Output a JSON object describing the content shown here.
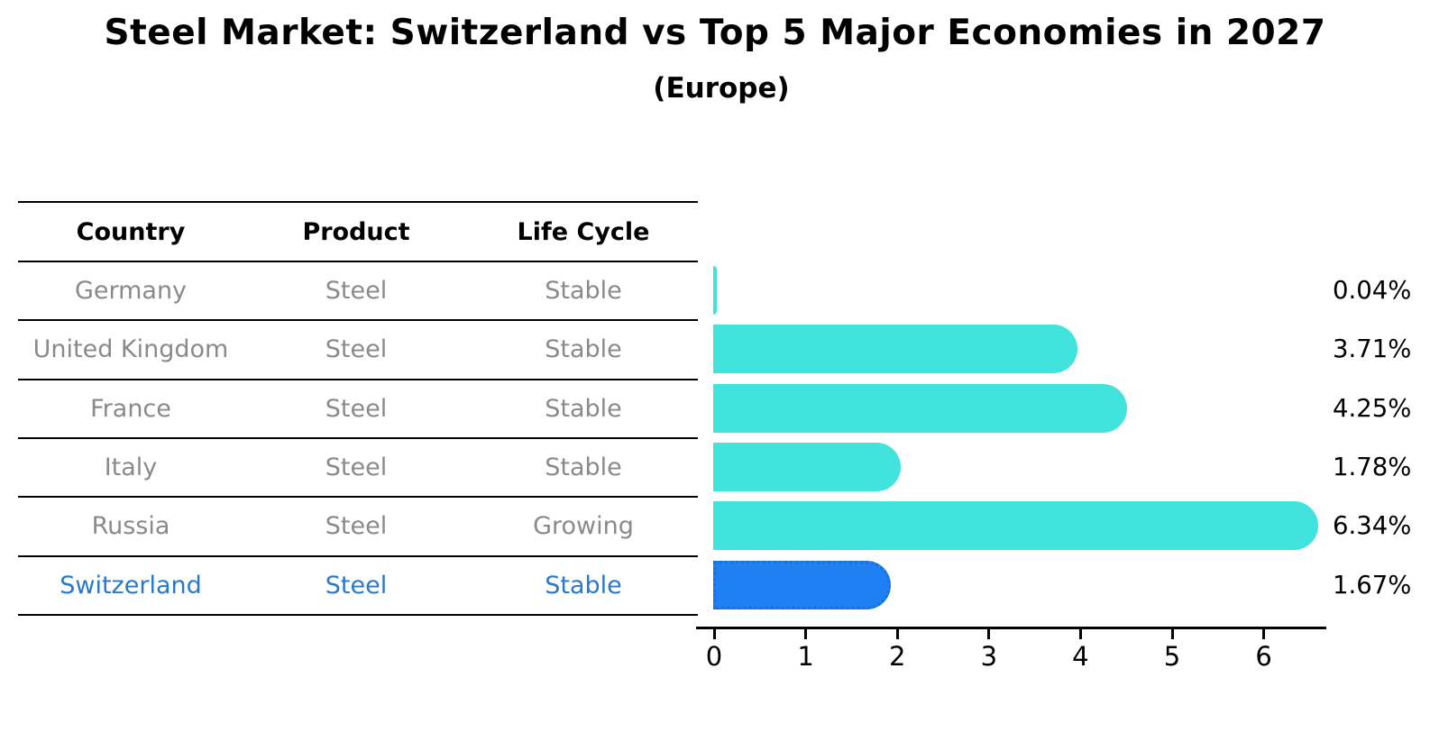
{
  "title": "Steel Market: Switzerland vs Top 5 Major Economies in 2027",
  "subtitle": "(Europe)",
  "table": {
    "headers": [
      "Country",
      "Product",
      "Life Cycle"
    ],
    "rows": [
      {
        "country": "Germany",
        "product": "Steel",
        "life_cycle": "Stable",
        "highlight": false
      },
      {
        "country": "United Kingdom",
        "product": "Steel",
        "life_cycle": "Stable",
        "highlight": false
      },
      {
        "country": "France",
        "product": "Steel",
        "life_cycle": "Stable",
        "highlight": false
      },
      {
        "country": "Italy",
        "product": "Steel",
        "life_cycle": "Stable",
        "highlight": false
      },
      {
        "country": "Russia",
        "product": "Steel",
        "life_cycle": "Growing",
        "highlight": false
      },
      {
        "country": "Switzerland",
        "product": "Steel",
        "life_cycle": "Stable",
        "highlight": true
      }
    ]
  },
  "chart_data": {
    "type": "bar",
    "orientation": "horizontal",
    "title": "Steel Market: Switzerland vs Top 5 Major Economies in 2027",
    "subtitle": "(Europe)",
    "categories": [
      "Germany",
      "United Kingdom",
      "France",
      "Italy",
      "Russia",
      "Switzerland"
    ],
    "values": [
      0.04,
      3.71,
      4.25,
      1.78,
      6.34,
      1.67
    ],
    "value_labels": [
      "0.04%",
      "3.71%",
      "4.25%",
      "1.78%",
      "6.34%",
      "1.67%"
    ],
    "xticks": [
      "0",
      "1",
      "2",
      "3",
      "4",
      "5",
      "6"
    ],
    "xlim": [
      0,
      6.67
    ],
    "grid": false,
    "legend": false,
    "bar_color": "#40e4dc",
    "highlight_index": 5,
    "highlight_color": "#1e80f2",
    "highlight_border_color": "#1a6fd8"
  },
  "colors": {
    "row_text": "#8a8a8a",
    "highlight_text": "#2878cb",
    "axis": "#000000",
    "background": "#ffffff"
  }
}
